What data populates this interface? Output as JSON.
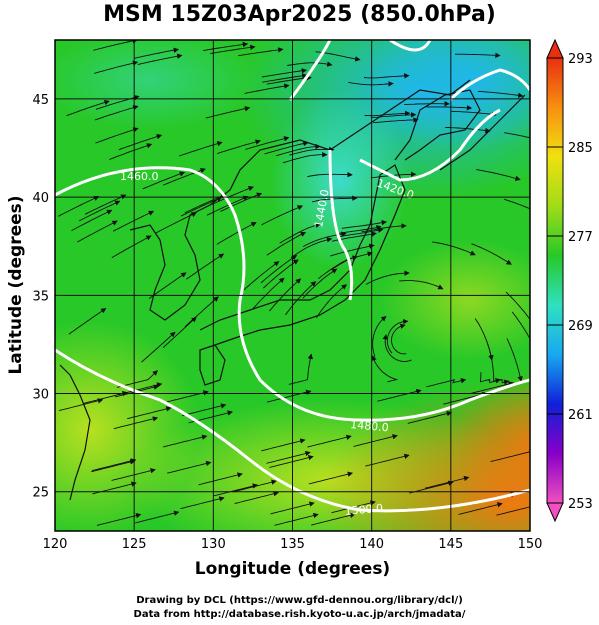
{
  "title": "MSM 15Z03Apr2025 (850.0hPa)",
  "map": {
    "xlabel": "Longitude (degrees)",
    "ylabel": "Latitude  (degrees)",
    "xlim": [
      120,
      150
    ],
    "ylim": [
      23,
      48
    ],
    "x_ticks": [
      "120",
      "125",
      "130",
      "135",
      "140",
      "145",
      "150"
    ],
    "y_ticks": [
      "25",
      "30",
      "35",
      "40",
      "45"
    ],
    "grid": true,
    "contour_labels": [
      "1460.0",
      "1440.0",
      "1420.0",
      "1480.0",
      "1500.0"
    ],
    "field_colors": {
      "cold": "#20b8e8",
      "cool": "#3cdccc",
      "mid": "#28c828",
      "warm": "#b8e020",
      "hot": "#f07810"
    }
  },
  "colorbar": {
    "ticks": [
      "293",
      "285",
      "277",
      "269",
      "261",
      "253"
    ],
    "range": [
      253,
      293
    ],
    "colors": [
      "#f050c0",
      "#8800c8",
      "#1020d8",
      "#18a8f0",
      "#30e0c0",
      "#28c828",
      "#a0dc18",
      "#f0e010",
      "#f89010",
      "#e83010"
    ]
  },
  "credits": {
    "line1": "Drawing by DCL (https://www.gfd-dennou.org/library/dcl/)",
    "line2": "Data from http://database.rish.kyoto-u.ac.jp/arch/jmadata/"
  }
}
